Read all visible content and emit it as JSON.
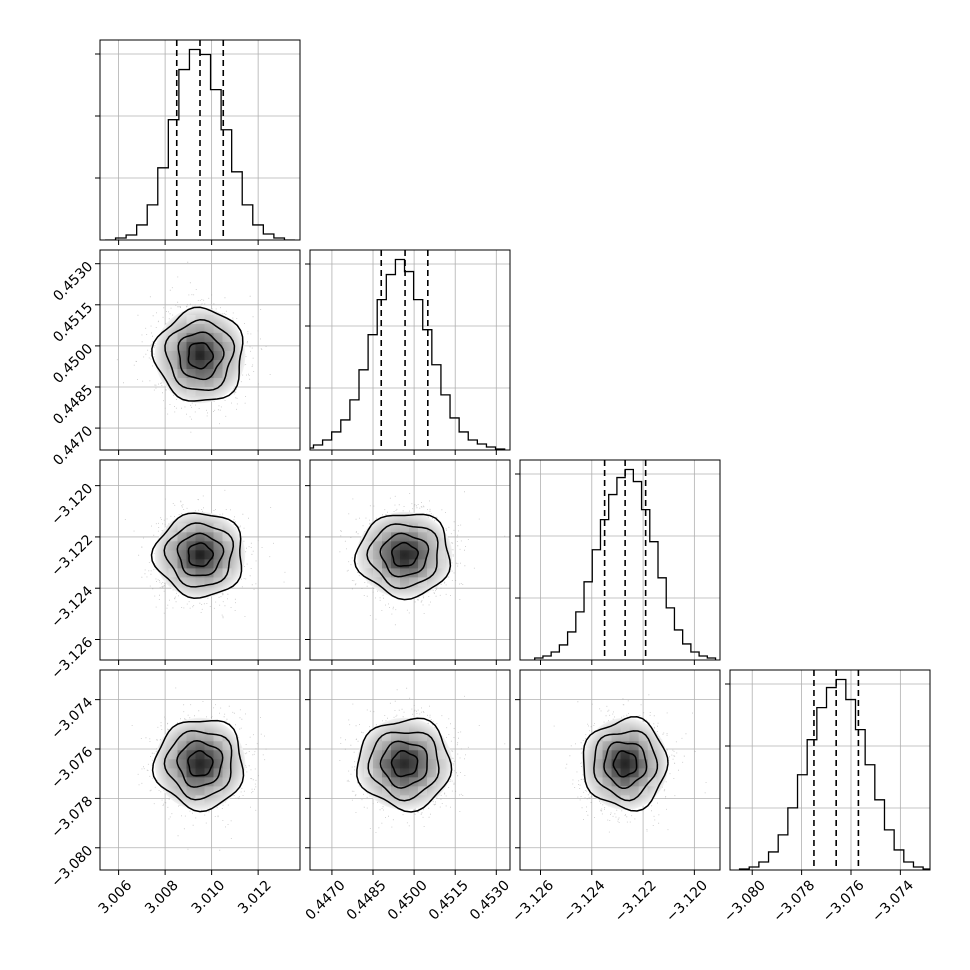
{
  "chart_data": {
    "type": "corner",
    "grid": true,
    "quantile_lines": "dashed",
    "parameters": [
      {
        "center": 3.0095,
        "sigma": 0.00095,
        "q16": 3.0085,
        "q50": 3.0095,
        "q84": 3.0105,
        "range": [
          3.0052,
          3.0138
        ],
        "ticks": [
          3.006,
          3.008,
          3.01,
          3.012
        ],
        "tick_labels": [
          "3.006",
          "3.008",
          "3.010",
          "3.012"
        ]
      },
      {
        "center": 0.44965,
        "sigma": 0.00085,
        "q16": 0.4488,
        "q50": 0.44967,
        "q84": 0.4505,
        "range": [
          0.4462,
          0.4535
        ],
        "ticks": [
          0.447,
          0.4485,
          0.45,
          0.4515,
          0.453
        ],
        "tick_labels": [
          "0.4470",
          "0.4485",
          "0.4500",
          "0.4515",
          "0.4530"
        ]
      },
      {
        "center": -3.1227,
        "sigma": 0.00082,
        "q16": -3.1235,
        "q50": -3.1227,
        "q84": -3.1219,
        "range": [
          -3.1268,
          -3.119
        ],
        "ticks": [
          -3.126,
          -3.124,
          -3.122,
          -3.12
        ],
        "tick_labels": [
          "−3.126",
          "−3.124",
          "−3.122",
          "−3.120"
        ]
      },
      {
        "center": -3.0766,
        "sigma": 0.00091,
        "q16": -3.0775,
        "q50": -3.0766,
        "q84": -3.0757,
        "range": [
          -3.0809,
          -3.0728
        ],
        "ticks": [
          -3.08,
          -3.078,
          -3.076,
          -3.074
        ],
        "tick_labels": [
          "−3.080",
          "−3.078",
          "−3.076",
          "−3.074"
        ]
      }
    ],
    "histograms": [
      [
        0,
        2,
        5,
        15,
        35,
        72,
        120,
        170,
        190,
        185,
        150,
        110,
        68,
        35,
        15,
        6,
        2,
        0
      ],
      [
        2,
        5,
        10,
        18,
        30,
        50,
        80,
        115,
        150,
        175,
        190,
        178,
        150,
        120,
        85,
        55,
        32,
        18,
        10,
        6,
        3,
        1
      ],
      [
        2,
        4,
        8,
        15,
        28,
        48,
        78,
        110,
        140,
        165,
        182,
        190,
        178,
        150,
        118,
        82,
        52,
        30,
        16,
        8,
        4,
        2
      ],
      [
        1,
        3,
        8,
        18,
        35,
        62,
        95,
        130,
        162,
        182,
        190,
        170,
        140,
        105,
        70,
        40,
        20,
        8,
        3,
        1
      ]
    ],
    "contour_levels": [
      "0.5-sigma",
      "1-sigma",
      "1.5-sigma",
      "2-sigma"
    ]
  }
}
